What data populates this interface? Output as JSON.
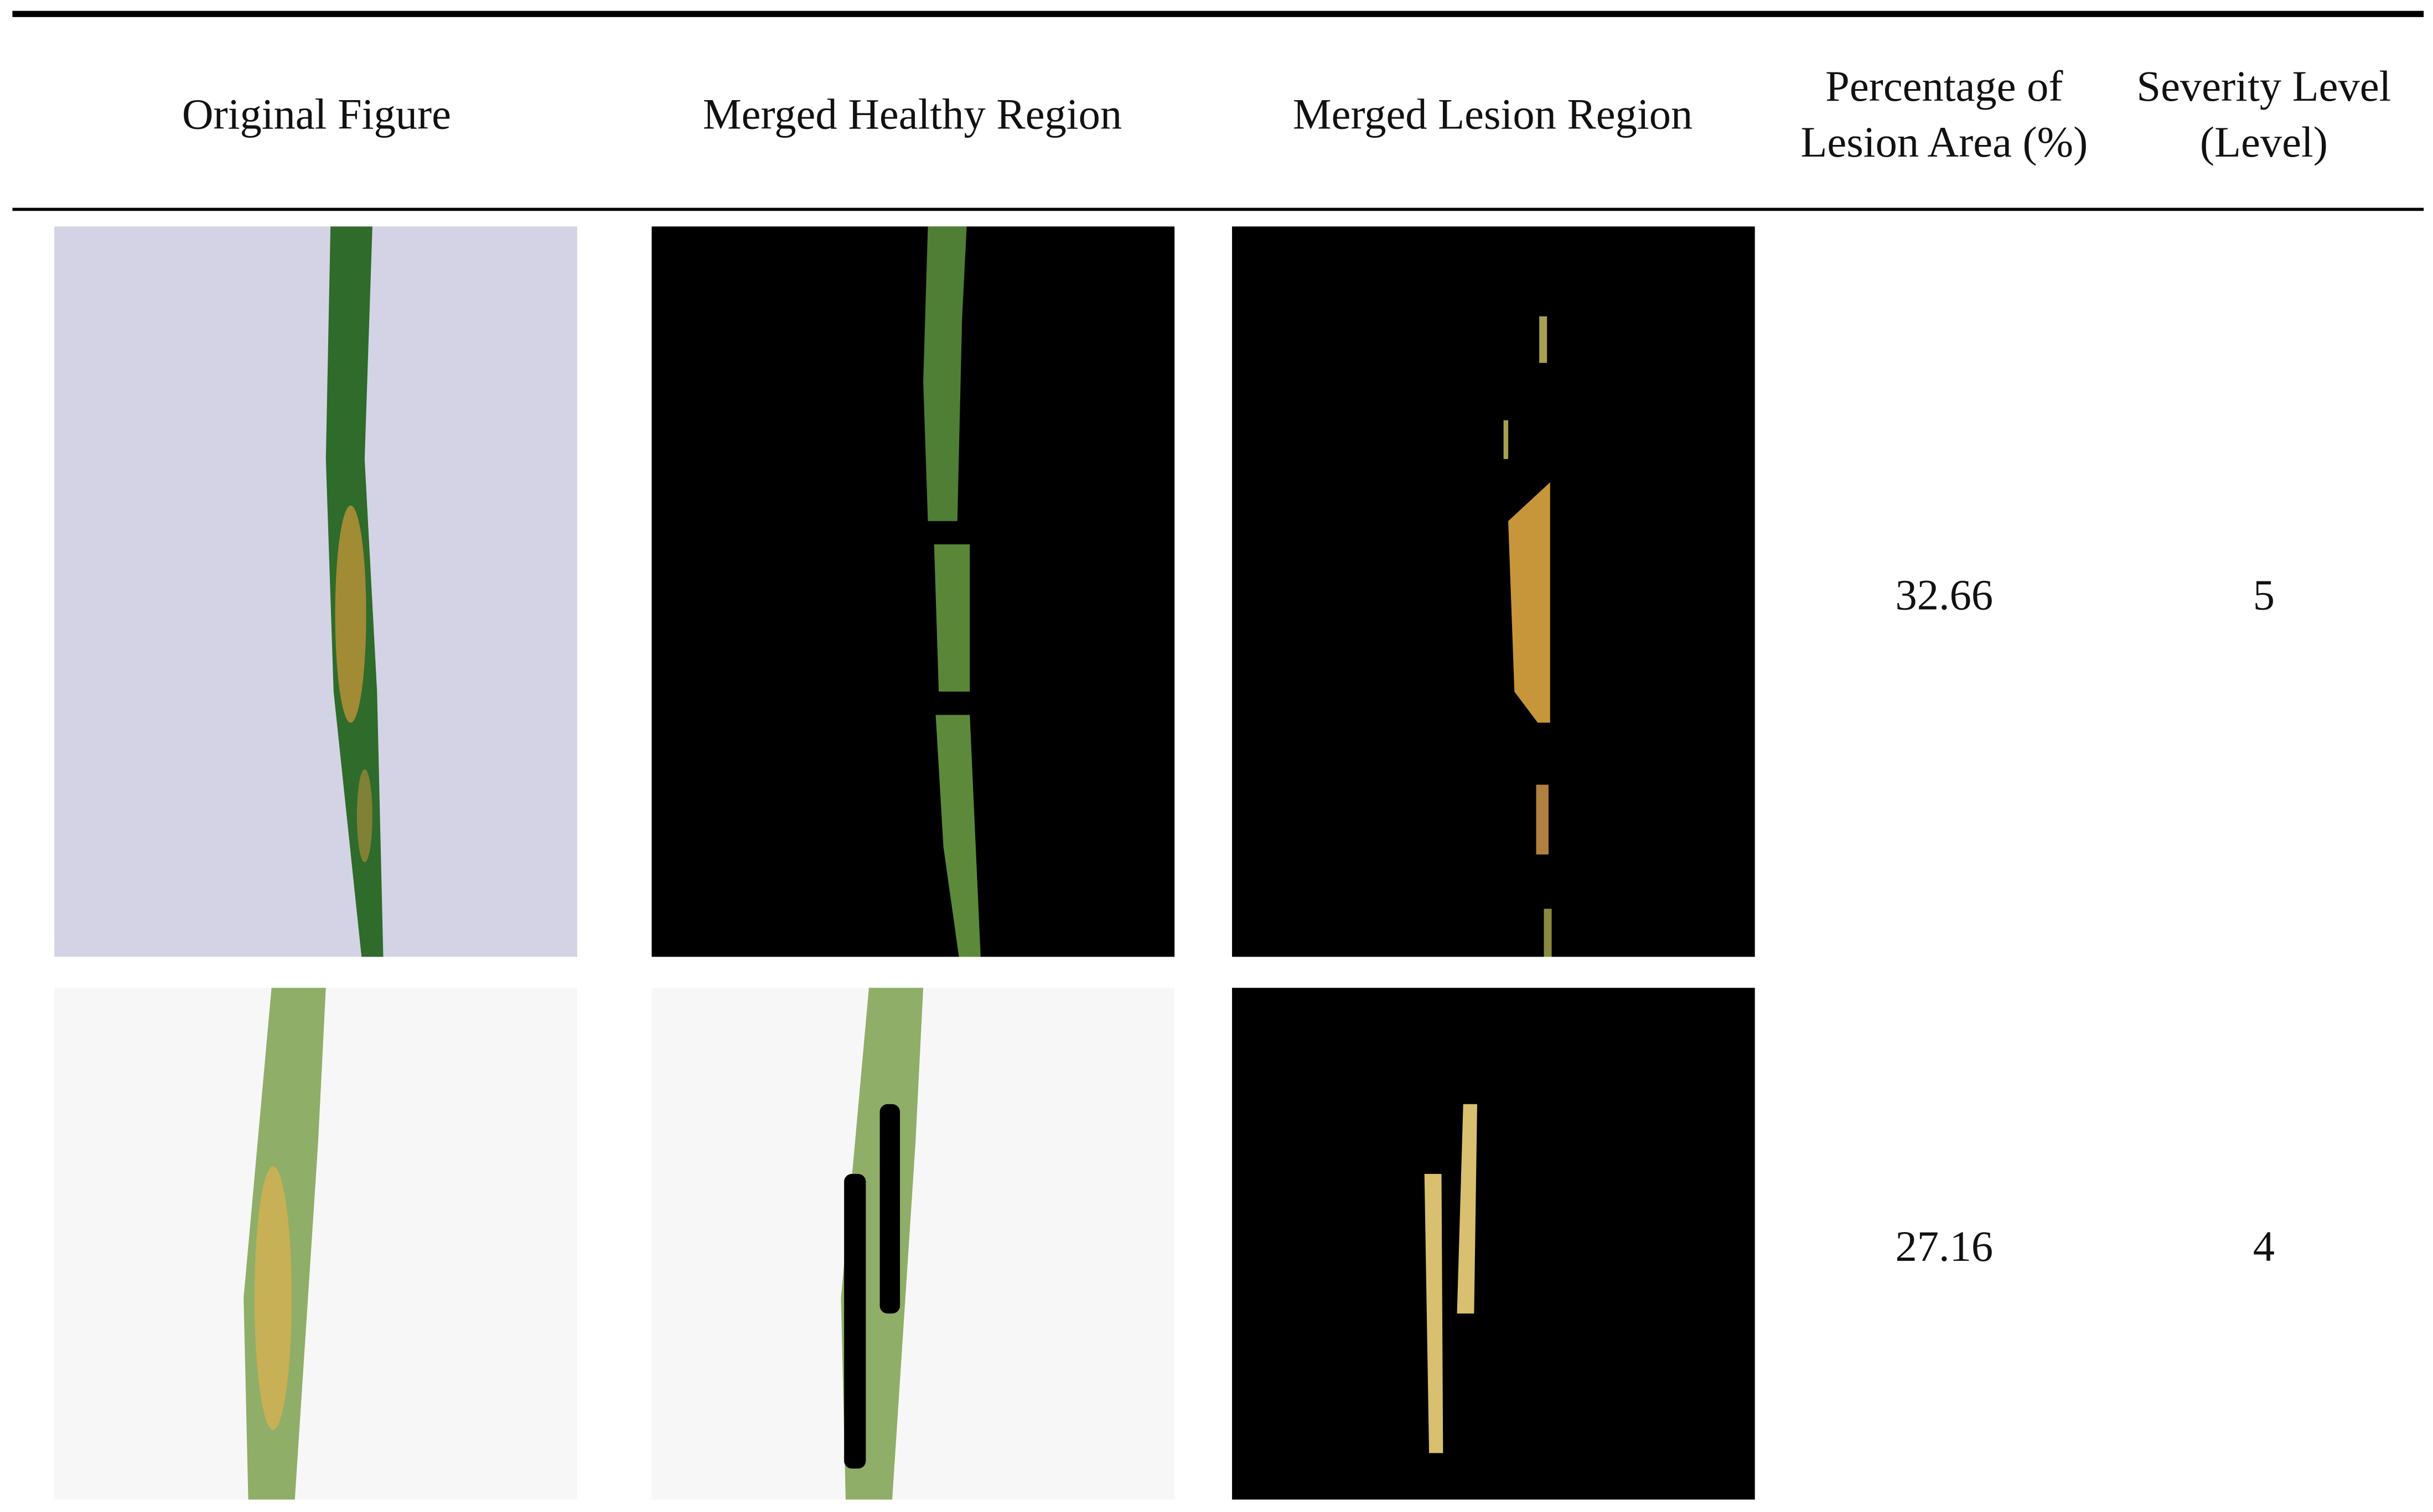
{
  "table": {
    "columns": [
      "Original Figure",
      "Merged Healthy Region",
      "Merged Lesion Region",
      "Percentage of Lesion Area (%)",
      "Severity Level (Level)"
    ],
    "rows": [
      {
        "percentage": 32.66,
        "severity": 5
      },
      {
        "percentage": 27.16,
        "severity": 4
      }
    ]
  }
}
